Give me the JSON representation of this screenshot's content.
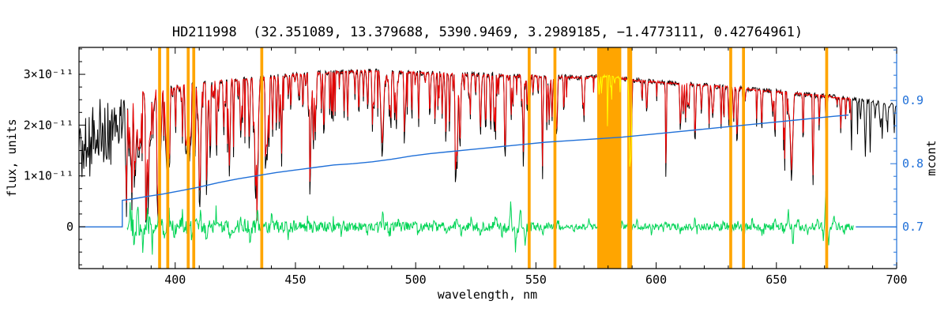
{
  "chart_data": {
    "type": "line",
    "title": "HD211998  (32.351089, 13.379688, 5390.9469, 3.2989185, −1.4773111, 0.42764961)",
    "xlabel": "wavelength, nm",
    "ylabel_left": "flux, units",
    "ylabel_right": "mcont",
    "x_range": [
      360,
      700
    ],
    "flux_range_1e11": [
      -0.825,
      3.53
    ],
    "mcont_range": [
      0.634,
      0.984
    ],
    "x_major_ticks": [
      400,
      450,
      500,
      550,
      600,
      650,
      700
    ],
    "x_minor_step": 10,
    "flux_major_ticks": [
      {
        "v": 0,
        "label": "0"
      },
      {
        "v": 1,
        "label": "1×10⁻¹¹"
      },
      {
        "v": 2,
        "label": "2×10⁻¹¹"
      },
      {
        "v": 3,
        "label": "3×10⁻¹¹"
      }
    ],
    "flux_minor_step": 0.25,
    "mcont_major_ticks": [
      {
        "v": 0.7,
        "label": "0.7"
      },
      {
        "v": 0.8,
        "label": "0.8"
      },
      {
        "v": 0.9,
        "label": "0.9"
      }
    ],
    "mcont_minor_step": 0.02,
    "colors": {
      "observed": "#000000",
      "model": "#ee0000",
      "residual": "#00d455",
      "mcont": "#2070d8",
      "masked": "#ffa500",
      "masked_spectrum": "#ffff00",
      "axes": "#000000"
    },
    "seed": 42,
    "masked_bands_nm": [
      [
        392.9,
        394.1
      ],
      [
        396.3,
        397.5
      ],
      [
        404.8,
        406.0
      ],
      [
        407.1,
        408.3
      ],
      [
        435.4,
        436.6
      ],
      [
        546.6,
        547.8
      ],
      [
        557.3,
        558.5
      ],
      [
        575.5,
        585.5
      ],
      [
        588.0,
        590.0
      ],
      [
        630.4,
        631.6
      ],
      [
        635.7,
        636.9
      ],
      [
        670.3,
        671.5
      ]
    ],
    "continuum_1e11": [
      [
        360,
        1.95
      ],
      [
        366,
        2.05
      ],
      [
        372,
        2.15
      ],
      [
        378,
        2.45
      ],
      [
        384,
        2.62
      ],
      [
        390,
        2.68
      ],
      [
        396,
        2.72
      ],
      [
        404,
        2.78
      ],
      [
        412,
        2.83
      ],
      [
        420,
        2.87
      ],
      [
        428,
        2.9
      ],
      [
        436,
        2.93
      ],
      [
        444,
        2.96
      ],
      [
        452,
        2.99
      ],
      [
        460,
        3.02
      ],
      [
        470,
        3.05
      ],
      [
        480,
        3.06
      ],
      [
        490,
        3.05
      ],
      [
        500,
        3.03
      ],
      [
        510,
        3.01
      ],
      [
        520,
        3.0
      ],
      [
        530,
        2.99
      ],
      [
        540,
        2.97
      ],
      [
        550,
        2.96
      ],
      [
        560,
        2.95
      ],
      [
        570,
        2.93
      ],
      [
        580,
        2.97
      ],
      [
        590,
        2.89
      ],
      [
        600,
        2.85
      ],
      [
        610,
        2.81
      ],
      [
        620,
        2.78
      ],
      [
        630,
        2.74
      ],
      [
        640,
        2.7
      ],
      [
        650,
        2.66
      ],
      [
        660,
        2.61
      ],
      [
        670,
        2.57
      ],
      [
        680,
        2.52
      ],
      [
        690,
        2.45
      ],
      [
        700,
        2.37
      ]
    ],
    "major_lines": [
      [
        381.6,
        0.55,
        1.0
      ],
      [
        383.5,
        0.6,
        0.9
      ],
      [
        385.0,
        0.5,
        0.7
      ],
      [
        388.9,
        0.6,
        1.1
      ],
      [
        393.4,
        0.8,
        1.4
      ],
      [
        396.8,
        0.78,
        1.4
      ],
      [
        404.6,
        0.5,
        0.5
      ],
      [
        406.4,
        0.45,
        0.5
      ],
      [
        410.2,
        0.6,
        1.2
      ],
      [
        413.1,
        0.5,
        0.5
      ],
      [
        414.4,
        0.45,
        0.5
      ],
      [
        417.2,
        0.5,
        0.5
      ],
      [
        420.2,
        0.4,
        0.5
      ],
      [
        422.7,
        0.55,
        0.6
      ],
      [
        427.2,
        0.45,
        0.5
      ],
      [
        430.8,
        0.5,
        0.6
      ],
      [
        432.6,
        0.45,
        0.5
      ],
      [
        434.0,
        0.62,
        1.3
      ],
      [
        438.4,
        0.5,
        0.7
      ],
      [
        440.5,
        0.4,
        0.5
      ],
      [
        444.2,
        0.35,
        0.5
      ],
      [
        448.1,
        0.3,
        0.4
      ],
      [
        453.1,
        0.3,
        0.4
      ],
      [
        455.4,
        0.35,
        0.4
      ],
      [
        462.0,
        0.3,
        0.4
      ],
      [
        470.3,
        0.3,
        0.4
      ],
      [
        476.3,
        0.3,
        0.4
      ],
      [
        480.1,
        0.3,
        0.4
      ],
      [
        486.1,
        0.58,
        1.2
      ],
      [
        489.1,
        0.35,
        0.5
      ],
      [
        492.0,
        0.3,
        0.4
      ],
      [
        495.8,
        0.3,
        0.4
      ],
      [
        501.2,
        0.35,
        0.4
      ],
      [
        508.0,
        0.3,
        0.4
      ],
      [
        511.0,
        0.3,
        0.4
      ],
      [
        516.7,
        0.55,
        0.6
      ],
      [
        517.3,
        0.62,
        0.6
      ],
      [
        518.4,
        0.58,
        0.6
      ],
      [
        522.7,
        0.35,
        0.4
      ],
      [
        526.9,
        0.45,
        0.5
      ],
      [
        532.8,
        0.4,
        0.5
      ],
      [
        537.1,
        0.4,
        0.5
      ],
      [
        539.7,
        0.35,
        0.4
      ],
      [
        544.7,
        0.45,
        0.5
      ],
      [
        552.8,
        0.4,
        0.5
      ],
      [
        558.8,
        0.35,
        0.4
      ],
      [
        561.6,
        0.3,
        0.4
      ],
      [
        570.0,
        0.3,
        0.4
      ],
      [
        589.0,
        0.68,
        0.6
      ],
      [
        589.6,
        0.6,
        0.6
      ],
      [
        610.3,
        0.3,
        0.4
      ],
      [
        612.2,
        0.32,
        0.4
      ],
      [
        616.2,
        0.35,
        0.45
      ],
      [
        622.0,
        0.3,
        0.4
      ],
      [
        627.0,
        0.3,
        0.4
      ],
      [
        630.2,
        0.3,
        0.4
      ],
      [
        633.7,
        0.3,
        0.4
      ],
      [
        643.9,
        0.35,
        0.45
      ],
      [
        649.4,
        0.4,
        0.5
      ],
      [
        653.0,
        0.3,
        0.4
      ],
      [
        656.3,
        0.7,
        1.1
      ],
      [
        661.1,
        0.3,
        0.4
      ],
      [
        667.8,
        0.3,
        0.4
      ],
      [
        670.8,
        0.5,
        0.5
      ],
      [
        676.8,
        0.3,
        0.4
      ],
      [
        687.0,
        0.45,
        0.6
      ],
      [
        689.0,
        0.4,
        0.5
      ],
      [
        694.0,
        0.3,
        0.4
      ]
    ],
    "line_forest": [
      {
        "range": [
          378.5,
          415
        ],
        "chance": 0.5,
        "dmax": 0.6
      },
      {
        "range": [
          415,
          470
        ],
        "chance": 0.35,
        "dmax": 0.5
      },
      {
        "range": [
          470,
          560
        ],
        "chance": 0.2,
        "dmax": 0.45
      },
      {
        "range": [
          560,
          620
        ],
        "chance": 0.1,
        "dmax": 0.33
      },
      {
        "range": [
          620,
          700
        ],
        "chance": 0.08,
        "dmax": 0.33
      }
    ],
    "deep_line_chance": 0.012,
    "deep_line_depth": [
      0.55,
      0.85
    ],
    "noise_sigma": {
      "observed": 0.05,
      "model": 0.025
    },
    "noisy_head": {
      "range": [
        360,
        378.5
      ],
      "base": [
        [
          360,
          1.55
        ],
        [
          364,
          1.6
        ],
        [
          368,
          1.65
        ],
        [
          372,
          1.75
        ],
        [
          375,
          1.9
        ],
        [
          378.5,
          2.15
        ]
      ],
      "amp": [
        [
          360,
          0.95
        ],
        [
          365,
          0.95
        ],
        [
          370,
          0.9
        ],
        [
          375,
          0.85
        ],
        [
          378.5,
          0.7
        ]
      ]
    },
    "model_range_nm": [
      379.5,
      681
    ],
    "residual_range_nm": [
      380,
      682
    ],
    "residual_amp_1e11": [
      [
        380,
        0.3
      ],
      [
        385,
        0.26
      ],
      [
        390,
        0.22
      ],
      [
        395,
        0.2
      ],
      [
        400,
        0.17
      ],
      [
        410,
        0.16
      ],
      [
        420,
        0.15
      ],
      [
        430,
        0.16
      ],
      [
        440,
        0.13
      ],
      [
        450,
        0.12
      ],
      [
        460,
        0.11
      ],
      [
        470,
        0.1
      ],
      [
        480,
        0.1
      ],
      [
        490,
        0.1
      ],
      [
        500,
        0.1
      ],
      [
        510,
        0.09
      ],
      [
        520,
        0.09
      ],
      [
        530,
        0.09
      ],
      [
        535,
        0.12
      ],
      [
        540,
        0.13
      ],
      [
        545,
        0.12
      ],
      [
        550,
        0.08
      ],
      [
        560,
        0.07
      ],
      [
        570,
        0.06
      ],
      [
        580,
        0.05
      ],
      [
        590,
        0.06
      ],
      [
        600,
        0.07
      ],
      [
        610,
        0.07
      ],
      [
        620,
        0.07
      ],
      [
        630,
        0.08
      ],
      [
        640,
        0.07
      ],
      [
        650,
        0.08
      ],
      [
        660,
        0.08
      ],
      [
        670,
        0.08
      ],
      [
        682,
        0.07
      ]
    ],
    "residual_spikes": [
      [
        381.5,
        0.45
      ],
      [
        383,
        -0.5
      ],
      [
        384.5,
        0.4
      ],
      [
        386.5,
        -0.4
      ],
      [
        388.5,
        0.42
      ],
      [
        390.5,
        -0.35
      ],
      [
        393.5,
        0.5
      ],
      [
        395.5,
        -0.45
      ],
      [
        397.5,
        0.35
      ],
      [
        399.5,
        -0.3
      ],
      [
        403,
        0.3
      ],
      [
        407,
        -0.3
      ],
      [
        410.3,
        0.32
      ],
      [
        413,
        -0.3
      ],
      [
        417,
        0.3
      ],
      [
        422.8,
        -0.3
      ],
      [
        427,
        0.25
      ],
      [
        431,
        -0.28
      ],
      [
        434.2,
        0.38
      ],
      [
        436,
        -0.32
      ],
      [
        440,
        0.25
      ],
      [
        447,
        -0.22
      ],
      [
        455,
        0.2
      ],
      [
        463,
        -0.2
      ],
      [
        470,
        0.2
      ],
      [
        480,
        -0.18
      ],
      [
        486.3,
        0.3
      ],
      [
        489,
        -0.2
      ],
      [
        493,
        0.18
      ],
      [
        501,
        -0.18
      ],
      [
        508,
        0.18
      ],
      [
        513,
        -0.16
      ],
      [
        517.2,
        0.3
      ],
      [
        519,
        -0.25
      ],
      [
        523,
        0.18
      ],
      [
        527,
        -0.22
      ],
      [
        533,
        0.2
      ],
      [
        536,
        -0.18
      ],
      [
        539.5,
        0.45
      ],
      [
        541.5,
        -0.42
      ],
      [
        543.5,
        0.5
      ],
      [
        545.5,
        -0.38
      ],
      [
        547,
        0.3
      ],
      [
        553,
        -0.2
      ],
      [
        559,
        0.18
      ],
      [
        566,
        -0.15
      ],
      [
        572,
        0.12
      ],
      [
        578,
        -0.1
      ],
      [
        586,
        0.15
      ],
      [
        589.3,
        -0.2
      ],
      [
        592,
        0.15
      ],
      [
        598,
        -0.12
      ],
      [
        604,
        0.14
      ],
      [
        610,
        -0.14
      ],
      [
        616,
        0.16
      ],
      [
        622,
        -0.14
      ],
      [
        628,
        0.18
      ],
      [
        631,
        -0.2
      ],
      [
        634,
        0.18
      ],
      [
        636.5,
        -0.22
      ],
      [
        640,
        0.15
      ],
      [
        644,
        -0.15
      ],
      [
        649.5,
        0.2
      ],
      [
        653,
        -0.2
      ],
      [
        655,
        0.35
      ],
      [
        656.8,
        -0.45
      ],
      [
        659,
        0.2
      ],
      [
        663,
        -0.15
      ],
      [
        667,
        0.2
      ],
      [
        669.5,
        -0.25
      ],
      [
        670.6,
        0.92
      ],
      [
        671.6,
        -0.3
      ],
      [
        674,
        0.2
      ],
      [
        678,
        -0.15
      ]
    ],
    "residual_outlier": {
      "chance": 0.03,
      "factor": 2.2
    },
    "mcont_curve": [
      [
        378,
        0.742
      ],
      [
        382,
        0.744
      ],
      [
        388,
        0.748
      ],
      [
        395,
        0.752
      ],
      [
        402,
        0.757
      ],
      [
        410,
        0.763
      ],
      [
        418,
        0.77
      ],
      [
        426,
        0.776
      ],
      [
        434,
        0.781
      ],
      [
        442,
        0.786
      ],
      [
        450,
        0.79
      ],
      [
        458,
        0.794
      ],
      [
        466,
        0.798
      ],
      [
        474,
        0.8
      ],
      [
        482,
        0.803
      ],
      [
        490,
        0.807
      ],
      [
        498,
        0.812
      ],
      [
        506,
        0.816
      ],
      [
        514,
        0.819
      ],
      [
        522,
        0.822
      ],
      [
        530,
        0.825
      ],
      [
        538,
        0.828
      ],
      [
        546,
        0.831
      ],
      [
        554,
        0.834
      ],
      [
        562,
        0.836
      ],
      [
        570,
        0.838
      ],
      [
        578,
        0.84
      ],
      [
        586,
        0.842
      ],
      [
        594,
        0.845
      ],
      [
        602,
        0.848
      ],
      [
        610,
        0.851
      ],
      [
        618,
        0.854
      ],
      [
        626,
        0.857
      ],
      [
        634,
        0.86
      ],
      [
        642,
        0.863
      ],
      [
        650,
        0.866
      ],
      [
        658,
        0.869
      ],
      [
        666,
        0.872
      ],
      [
        674,
        0.875
      ],
      [
        680,
        0.877
      ]
    ],
    "mcont_baselines_nm": [
      [
        360,
        378
      ],
      [
        683,
        700
      ]
    ],
    "mcont_baseline_value": 0.7
  }
}
